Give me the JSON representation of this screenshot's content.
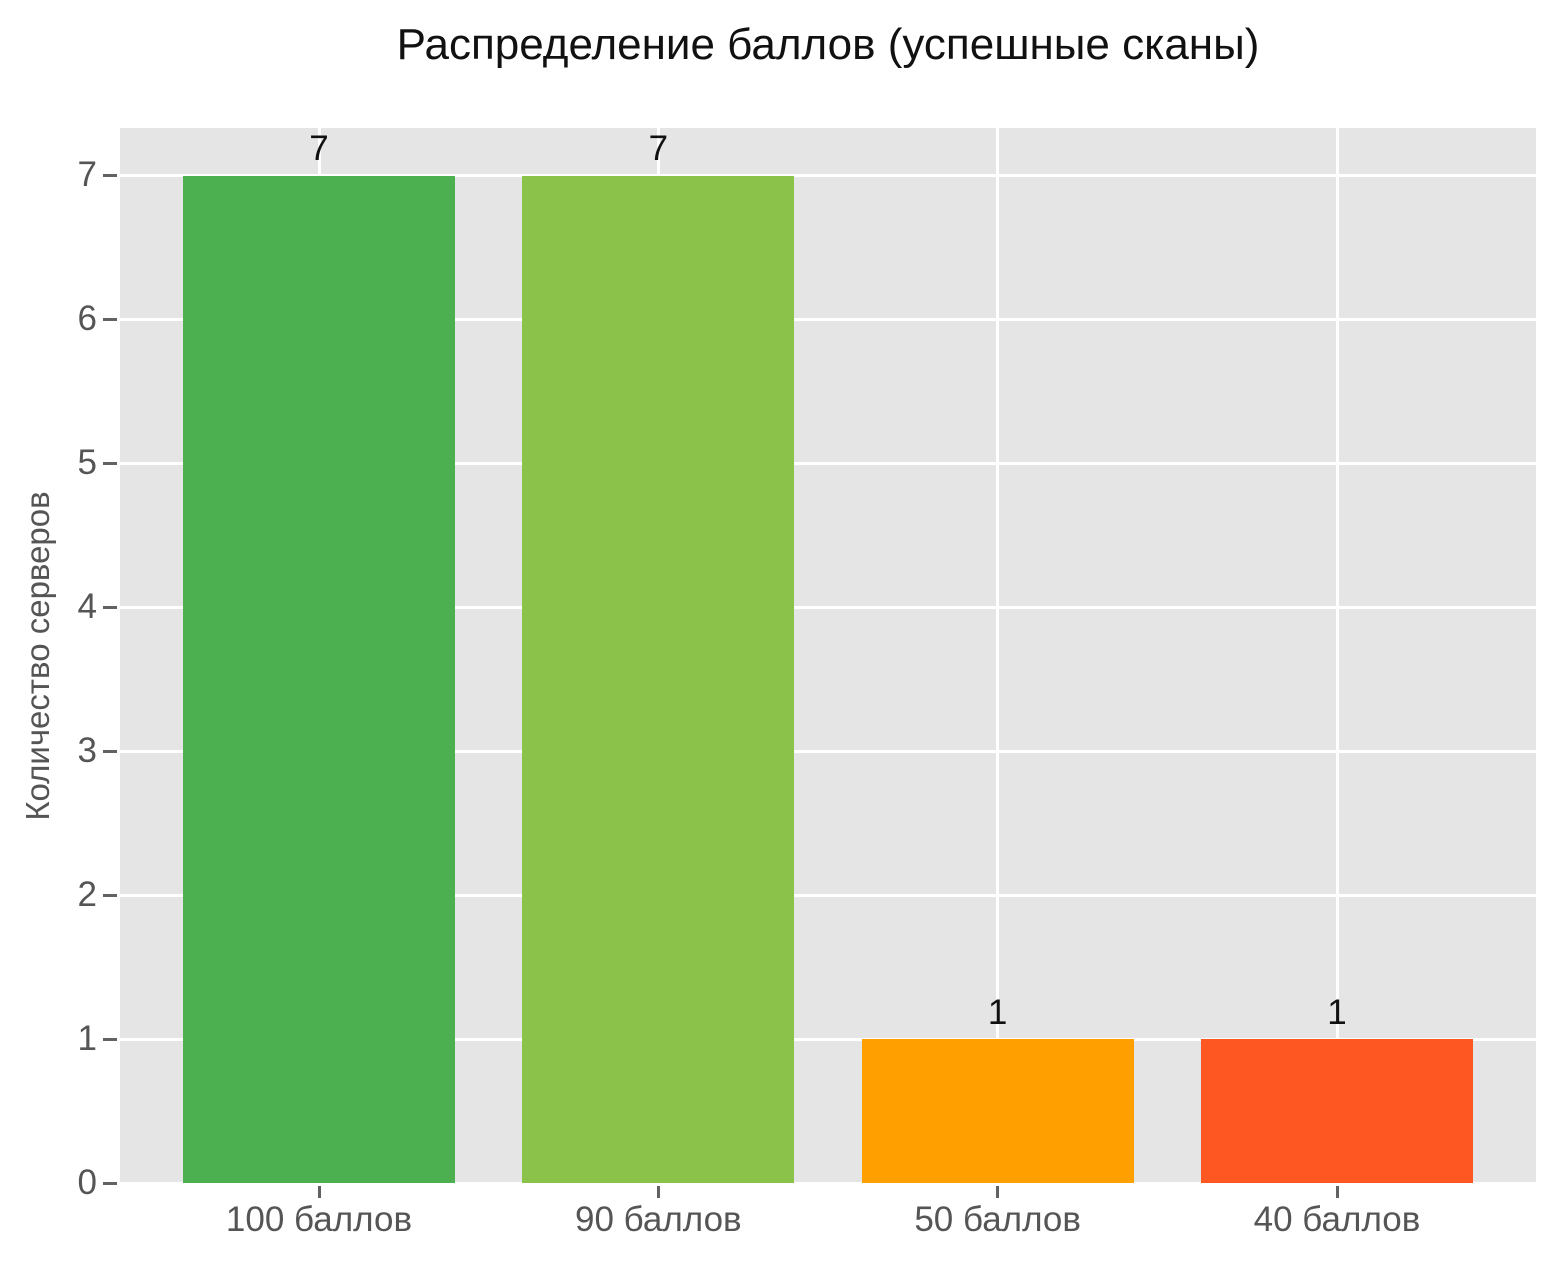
{
  "chart_data": {
    "type": "bar",
    "title": "Распределение баллов (успешные сканы)",
    "xlabel": "",
    "ylabel": "Количество серверов",
    "categories": [
      "100 баллов",
      "90 баллов",
      "50 баллов",
      "40 баллов"
    ],
    "values": [
      7,
      7,
      1,
      1
    ],
    "value_labels": [
      "7",
      "7",
      "1",
      "1"
    ],
    "bar_colors": [
      "#4CAF50",
      "#8BC34A",
      "#FFA000",
      "#FF5722"
    ],
    "yticks": [
      0,
      1,
      2,
      3,
      4,
      5,
      6,
      7
    ],
    "ylim": [
      0,
      7.33
    ],
    "grid": true,
    "legend_position": "none",
    "colors": {
      "figure_background": "#FFFFFF",
      "plot_background": "#E5E5E5",
      "gridline": "#FFFFFF",
      "tick_text": "#555555",
      "tick_mark": "#626262",
      "title_text": "#111111",
      "value_label_text": "#111111"
    }
  }
}
